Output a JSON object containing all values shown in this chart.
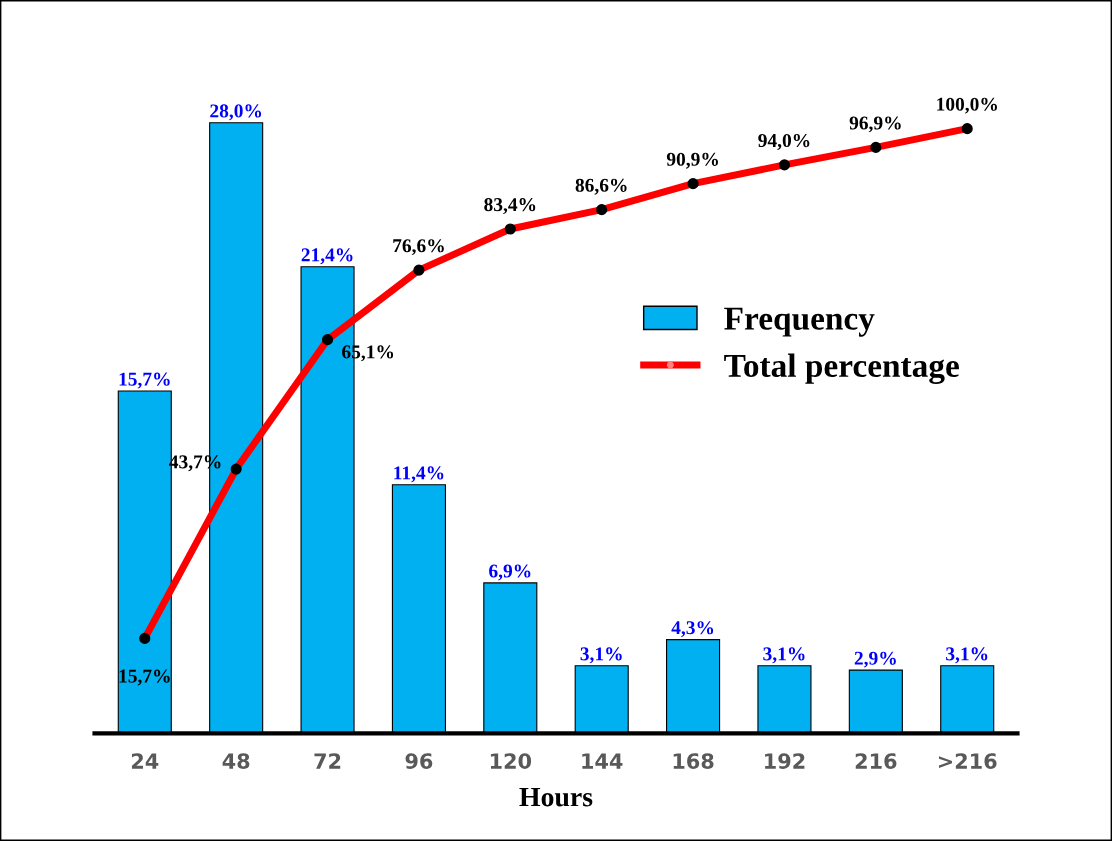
{
  "chart_data": {
    "type": "bar",
    "xlabel": "Hours",
    "categories": [
      "24",
      "48",
      "72",
      "96",
      "120",
      "144",
      "168",
      "192",
      "216",
      ">216"
    ],
    "series": [
      {
        "name": "Frequency",
        "color": "#00b0f0",
        "values": [
          15.7,
          28.0,
          21.4,
          11.4,
          6.9,
          3.1,
          4.3,
          3.1,
          2.9,
          3.1
        ],
        "value_labels": [
          "15,7%",
          "28,0%",
          "21,4%",
          "11,4%",
          "6,9%",
          "3,1%",
          "4,3%",
          "3,1%",
          "2,9%",
          "3,1%"
        ]
      },
      {
        "name": "Total percentage",
        "type": "line",
        "axis": "y2",
        "color": "#ff0000",
        "marker": "circle",
        "values": [
          15.7,
          43.7,
          65.1,
          76.6,
          83.4,
          86.6,
          90.9,
          94.0,
          96.9,
          100.0
        ],
        "value_labels": [
          "15,7%",
          "43,7%",
          "65,1%",
          "76,6%",
          "83,4%",
          "86,6%",
          "90,9%",
          "94,0%",
          "96,9%",
          "100,0%"
        ]
      }
    ],
    "tick_labels": "x",
    "legend": "upper right",
    "grid": false
  }
}
